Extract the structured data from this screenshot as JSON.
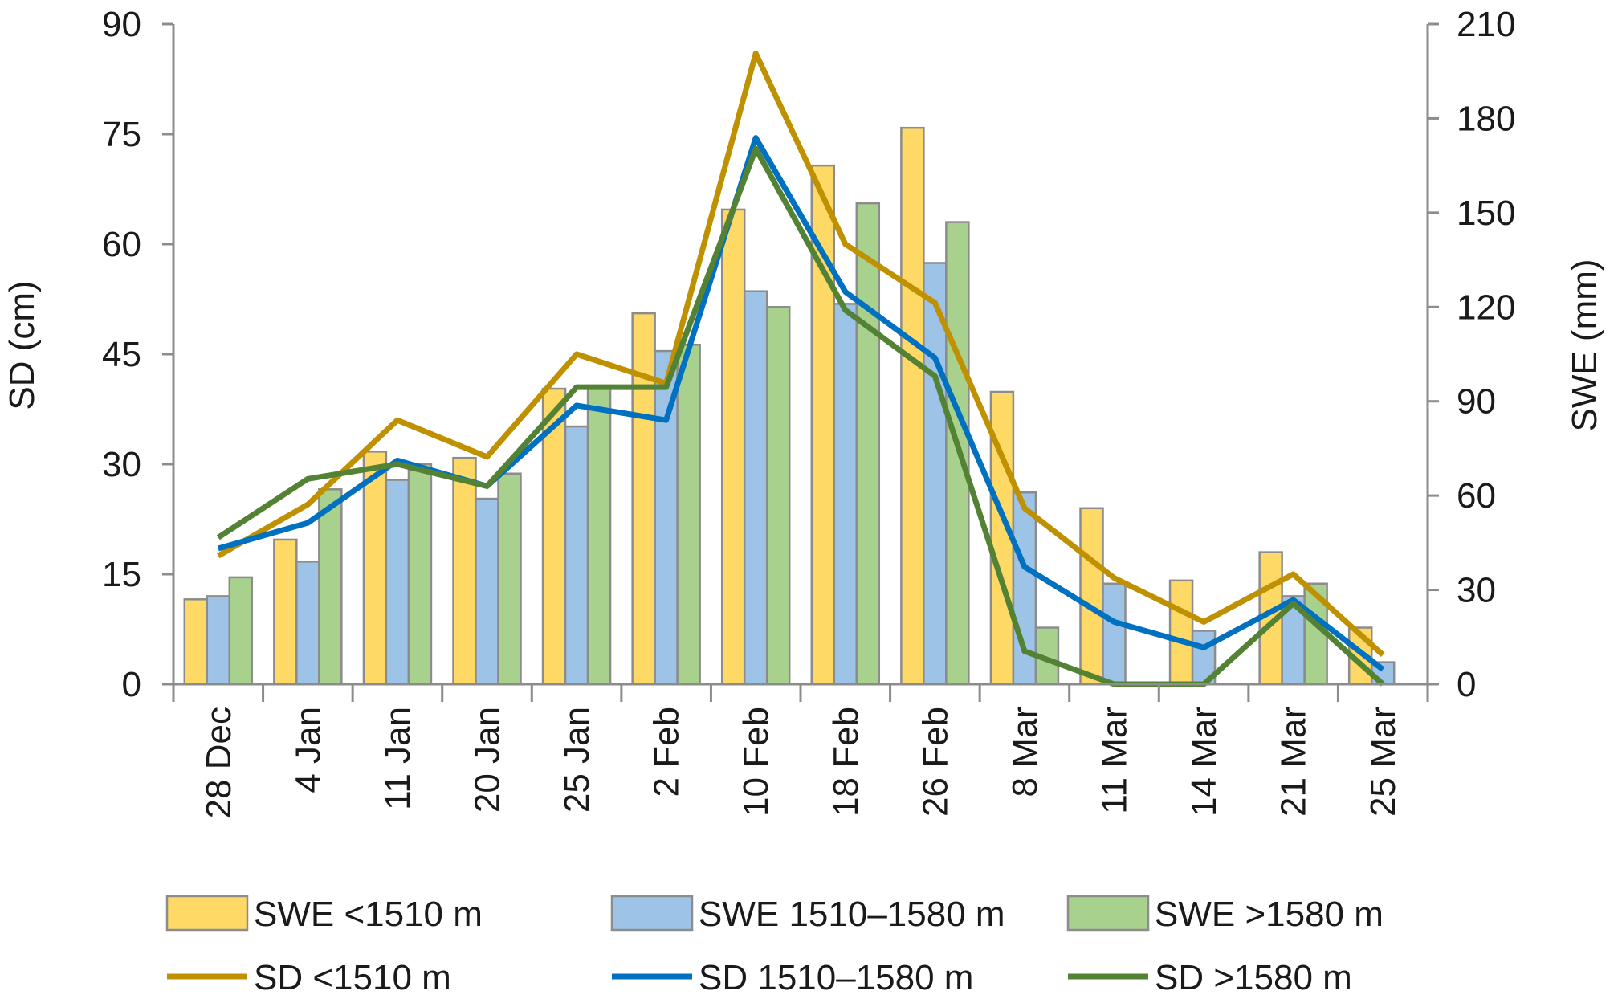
{
  "chart_data": {
    "type": "bar+line",
    "categories": [
      "28 Dec",
      "4 Jan",
      "11 Jan",
      "20 Jan",
      "25 Jan",
      "2 Feb",
      "10 Feb",
      "18 Feb",
      "26 Feb",
      "8 Mar",
      "11 Mar",
      "14 Mar",
      "21 Mar",
      "25 Mar"
    ],
    "ylabel_left": "SD (cm)",
    "ylabel_right": "SWE (mm)",
    "ylim_left": [
      0,
      90
    ],
    "ylim_right": [
      0,
      210
    ],
    "yticks_left": [
      0,
      15,
      30,
      45,
      60,
      75,
      90
    ],
    "yticks_right": [
      0,
      30,
      60,
      90,
      120,
      150,
      180,
      210
    ],
    "grid": false,
    "legend_position": "bottom",
    "bar_series": [
      {
        "name": "SWE <1510 m",
        "axis": "right",
        "color": "#FFD966",
        "values": [
          27,
          46,
          74,
          72,
          94,
          118,
          151,
          165,
          177,
          93,
          56,
          33,
          42,
          18
        ]
      },
      {
        "name": "SWE 1510–1580 m",
        "axis": "right",
        "color": "#9DC3E6",
        "values": [
          28,
          39,
          65,
          59,
          82,
          106,
          125,
          121,
          134,
          61,
          32,
          17,
          28,
          7
        ]
      },
      {
        "name": "SWE >1580 m",
        "axis": "right",
        "color": "#A9D18E",
        "values": [
          34,
          62,
          70,
          67,
          95,
          108,
          120,
          153,
          147,
          18,
          0,
          0,
          32,
          0
        ]
      }
    ],
    "line_series": [
      {
        "name": "SD <1510 m",
        "axis": "left",
        "color": "#BF9000",
        "values": [
          17.5,
          24.5,
          36,
          31,
          45,
          41,
          86,
          60,
          52,
          24,
          14.5,
          8.5,
          15,
          4
        ]
      },
      {
        "name": "SD 1510–1580 m",
        "axis": "left",
        "color": "#0070C0",
        "values": [
          18.5,
          22,
          30.5,
          27,
          38,
          36,
          74.5,
          53.5,
          44.5,
          16,
          8.5,
          5,
          11.5,
          2
        ]
      },
      {
        "name": "SD >1580 m",
        "axis": "left",
        "color": "#548235",
        "values": [
          20,
          28,
          30,
          27,
          40.5,
          40.5,
          73,
          51,
          42,
          4.5,
          0,
          0,
          11,
          0
        ]
      }
    ]
  }
}
